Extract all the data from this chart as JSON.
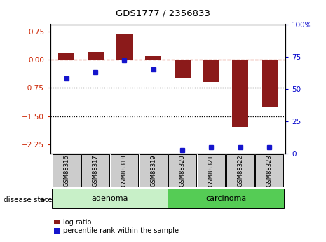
{
  "title": "GDS1777 / 2356833",
  "samples": [
    "GSM88316",
    "GSM88317",
    "GSM88318",
    "GSM88319",
    "GSM88320",
    "GSM88321",
    "GSM88322",
    "GSM88323"
  ],
  "log_ratio": [
    0.18,
    0.22,
    0.7,
    0.1,
    -0.48,
    -0.6,
    -1.78,
    -1.25
  ],
  "percentile_rank": [
    58,
    63,
    72,
    65,
    3,
    5,
    5,
    5
  ],
  "groups": [
    {
      "label": "adenoma",
      "start": 0,
      "end": 4,
      "color": "#c8f0c8"
    },
    {
      "label": "carcinoma",
      "start": 4,
      "end": 8,
      "color": "#55cc55"
    }
  ],
  "ylim_left": [
    -2.5,
    0.95
  ],
  "ylim_right": [
    0,
    100
  ],
  "yticks_left": [
    0.75,
    0,
    -0.75,
    -1.5,
    -2.25
  ],
  "yticks_right": [
    100,
    75,
    50,
    25,
    0
  ],
  "bar_color_red": "#8B1A1A",
  "bar_color_blue": "#1515cc",
  "dotted_lines": [
    -0.75,
    -1.5
  ],
  "bar_width": 0.55,
  "legend_red_label": "log ratio",
  "legend_blue_label": "percentile rank within the sample",
  "disease_state_label": "disease state",
  "label_color_left": "#cc2200",
  "label_color_right": "#0000cc",
  "background_color": "#ffffff",
  "tick_label_bg": "#cccccc",
  "adenoma_color": "#ccf5cc",
  "carcinoma_color": "#44cc44"
}
